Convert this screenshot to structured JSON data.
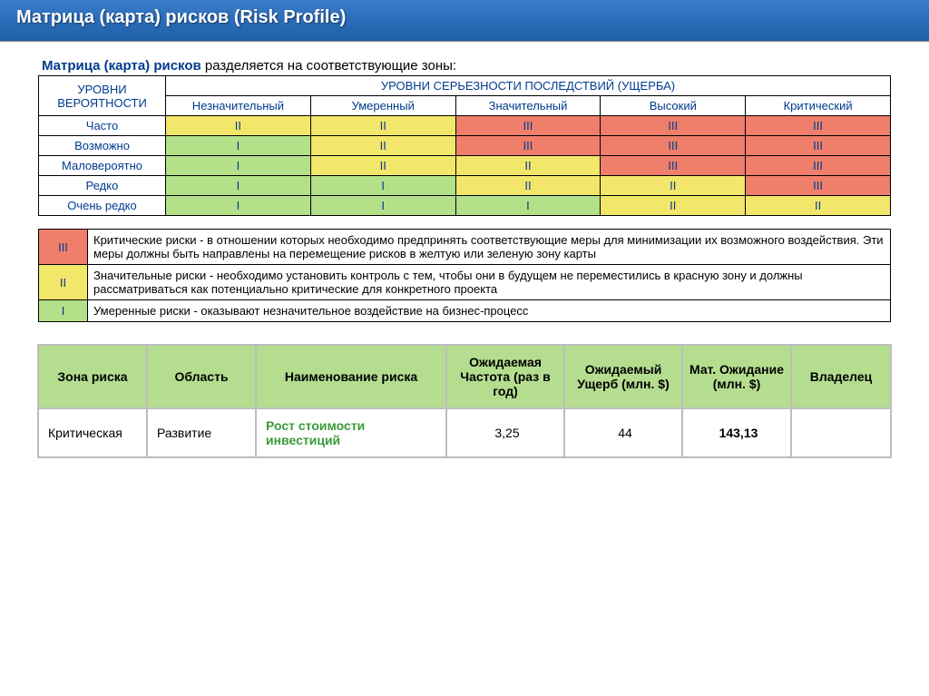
{
  "title": "Матрица (карта) рисков (Risk Profile)",
  "intro_strong": "Матрица (карта) рисков",
  "intro_rest": " разделяется на соответствующие зоны:",
  "colors": {
    "green": "#b4e08a",
    "yellow": "#f2e76a",
    "red": "#ef7f6a",
    "header_blue": "#003b8e",
    "summary_header_bg": "#b4dd8f"
  },
  "matrix": {
    "row_header_top": "УРОВНИ ВЕРОЯТНОСТИ",
    "col_header_top": "УРОВНИ СЕРЬЕЗНОСТИ ПОСЛЕДСТВИЙ (УЩЕРБА)",
    "severity_labels": [
      "Незначительный",
      "Умеренный",
      "Значительный",
      "Высокий",
      "Критический"
    ],
    "prob_labels": [
      "Часто",
      "Возможно",
      "Маловероятно",
      "Редко",
      "Очень редко"
    ],
    "cells": [
      [
        {
          "v": "II",
          "c": "yellow"
        },
        {
          "v": "II",
          "c": "yellow"
        },
        {
          "v": "III",
          "c": "red"
        },
        {
          "v": "III",
          "c": "red"
        },
        {
          "v": "III",
          "c": "red"
        }
      ],
      [
        {
          "v": "I",
          "c": "green"
        },
        {
          "v": "II",
          "c": "yellow"
        },
        {
          "v": "III",
          "c": "red"
        },
        {
          "v": "III",
          "c": "red"
        },
        {
          "v": "III",
          "c": "red"
        }
      ],
      [
        {
          "v": "I",
          "c": "green"
        },
        {
          "v": "II",
          "c": "yellow"
        },
        {
          "v": "II",
          "c": "yellow"
        },
        {
          "v": "III",
          "c": "red"
        },
        {
          "v": "III",
          "c": "red"
        }
      ],
      [
        {
          "v": "I",
          "c": "green"
        },
        {
          "v": "I",
          "c": "green"
        },
        {
          "v": "II",
          "c": "yellow"
        },
        {
          "v": "II",
          "c": "yellow"
        },
        {
          "v": "III",
          "c": "red"
        }
      ],
      [
        {
          "v": "I",
          "c": "green"
        },
        {
          "v": "I",
          "c": "green"
        },
        {
          "v": "I",
          "c": "green"
        },
        {
          "v": "II",
          "c": "yellow"
        },
        {
          "v": "II",
          "c": "yellow"
        }
      ]
    ]
  },
  "legend": [
    {
      "badge": "III",
      "c": "red",
      "text": "Критические риски - в отношении которых необходимо предпринять соответствующие меры для минимизации их возможного воздействия. Эти меры должны быть направлены на перемещение рисков в желтую или зеленую зону карты"
    },
    {
      "badge": "II",
      "c": "yellow",
      "text": "Значительные риски - необходимо установить контроль с тем, чтобы они в будущем не переместились в красную зону и должны рассматриваться как потенциально критические для конкретного проекта"
    },
    {
      "badge": "I",
      "c": "green",
      "text": "Умеренные риски - оказывают незначительное воздействие на бизнес-процесс"
    }
  ],
  "summary": {
    "headers": [
      "Зона риска",
      "Область",
      "Наименование риска",
      "Ожидаемая Частота (раз в год)",
      "Ожидаемый Ущерб (млн. $)",
      "Мат. Ожидание (млн. $)",
      "Владелец"
    ],
    "row": {
      "zone": "Критическая",
      "area": "Развитие",
      "name": "Рост стоимости инвестиций",
      "freq": "3,25",
      "damage": "44",
      "expect": "143,13",
      "owner": ""
    }
  }
}
